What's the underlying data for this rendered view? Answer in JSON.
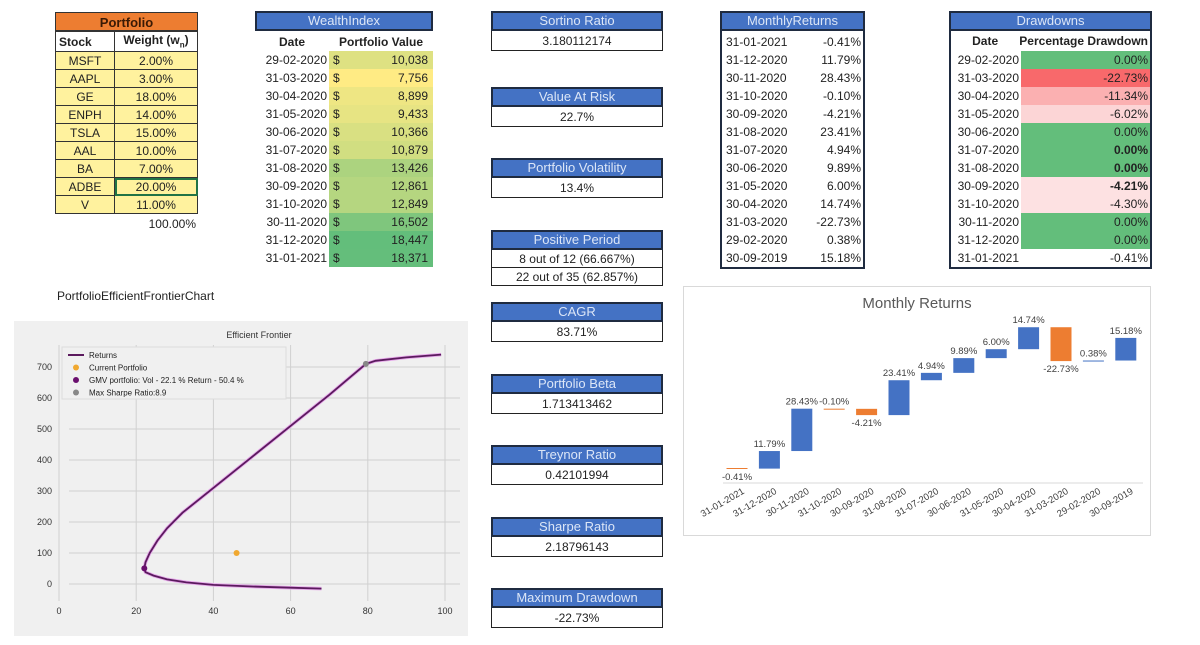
{
  "portfolio": {
    "title": "Portfolio",
    "col_stock": "Stock",
    "col_weight": "Weight (w",
    "col_weight_sub": "n",
    "col_weight_end": ")",
    "rows": [
      [
        "MSFT",
        "2.00%"
      ],
      [
        "AAPL",
        "3.00%"
      ],
      [
        "GE",
        "18.00%"
      ],
      [
        "ENPH",
        "14.00%"
      ],
      [
        "TSLA",
        "15.00%"
      ],
      [
        "AAL",
        "10.00%"
      ],
      [
        "BA",
        "7.00%"
      ],
      [
        "ADBE",
        "20.00%"
      ],
      [
        "V",
        "11.00%"
      ]
    ],
    "total": "100.00%",
    "header_color": "#ED7D31",
    "cell_color": "#FFF29E"
  },
  "wealth": {
    "title": "WealthIndex",
    "col_date": "Date",
    "col_value": "Portfolio Value",
    "currency": "$",
    "rows": [
      [
        "29-02-2020",
        "10,038"
      ],
      [
        "31-03-2020",
        "7,756"
      ],
      [
        "30-04-2020",
        "8,899"
      ],
      [
        "31-05-2020",
        "9,433"
      ],
      [
        "30-06-2020",
        "10,366"
      ],
      [
        "31-07-2020",
        "10,879"
      ],
      [
        "31-08-2020",
        "13,426"
      ],
      [
        "30-09-2020",
        "12,861"
      ],
      [
        "31-10-2020",
        "12,849"
      ],
      [
        "30-11-2020",
        "16,502"
      ],
      [
        "31-12-2020",
        "18,447"
      ],
      [
        "31-01-2021",
        "18,371"
      ]
    ]
  },
  "metrics": [
    {
      "label": "Sortino Ratio",
      "values": [
        "3.180112174"
      ]
    },
    {
      "label": "Value At Risk",
      "values": [
        "22.7%"
      ]
    },
    {
      "label": "Portfolio Volatility",
      "values": [
        "13.4%"
      ]
    },
    {
      "label": "Positive Period",
      "values": [
        "8 out of 12 (66.667%)",
        "22 out of 35 (62.857%)"
      ]
    },
    {
      "label": "CAGR",
      "values": [
        "83.71%"
      ]
    },
    {
      "label": "Portfolio Beta",
      "values": [
        "1.713413462"
      ]
    },
    {
      "label": "Treynor Ratio",
      "values": [
        "0.42101994"
      ]
    },
    {
      "label": "Sharpe Ratio",
      "values": [
        "2.18796143"
      ]
    },
    {
      "label": "Maximum Drawdown",
      "values": [
        "-22.73%"
      ]
    }
  ],
  "monthly": {
    "title": "MonthlyReturns",
    "rows": [
      [
        "31-01-2021",
        "-0.41%"
      ],
      [
        "31-12-2020",
        "11.79%"
      ],
      [
        "30-11-2020",
        "28.43%"
      ],
      [
        "31-10-2020",
        "-0.10%"
      ],
      [
        "30-09-2020",
        "-4.21%"
      ],
      [
        "31-08-2020",
        "23.41%"
      ],
      [
        "31-07-2020",
        "4.94%"
      ],
      [
        "30-06-2020",
        "9.89%"
      ],
      [
        "31-05-2020",
        "6.00%"
      ],
      [
        "30-04-2020",
        "14.74%"
      ],
      [
        "31-03-2020",
        "-22.73%"
      ],
      [
        "29-02-2020",
        "0.38%"
      ],
      [
        "30-09-2019",
        "15.18%"
      ]
    ]
  },
  "drawdowns": {
    "title": "Drawdowns",
    "col_date": "Date",
    "col_pct": "Percentage Drawdown",
    "rows": [
      [
        "29-02-2020",
        "0.00%"
      ],
      [
        "31-03-2020",
        "-22.73%"
      ],
      [
        "30-04-2020",
        "-11.34%"
      ],
      [
        "31-05-2020",
        "-6.02%"
      ],
      [
        "30-06-2020",
        "0.00%"
      ],
      [
        "31-07-2020",
        "0.00%"
      ],
      [
        "31-08-2020",
        "0.00%"
      ],
      [
        "30-09-2020",
        "-4.21%"
      ],
      [
        "31-10-2020",
        "-4.30%"
      ],
      [
        "30-11-2020",
        "0.00%"
      ],
      [
        "31-12-2020",
        "0.00%"
      ],
      [
        "31-01-2021",
        "-0.41%"
      ]
    ]
  },
  "frontier_caption": "PortfolioEfficientFrontierChart",
  "chart_data": [
    {
      "type": "line",
      "title": "Efficient Frontier",
      "xlim": [
        0,
        100
      ],
      "ylim": [
        -50,
        760
      ],
      "xticks": [
        0,
        20,
        40,
        60,
        80,
        100
      ],
      "yticks": [
        0,
        100,
        200,
        300,
        400,
        500,
        600,
        700
      ],
      "grid": true,
      "legend_placement": "top-left",
      "series": [
        {
          "name": "Returns",
          "color": "#5b1a5e",
          "points": [
            [
              68,
              -15
            ],
            [
              60,
              -12
            ],
            [
              50,
              -8
            ],
            [
              40,
              -3
            ],
            [
              33,
              5
            ],
            [
              28,
              15
            ],
            [
              24.5,
              27
            ],
            [
              22.4,
              38
            ],
            [
              22.1,
              50
            ],
            [
              22.4,
              70
            ],
            [
              23.5,
              100
            ],
            [
              25.5,
              140
            ],
            [
              28,
              180
            ],
            [
              32,
              230
            ],
            [
              40,
              310
            ],
            [
              50,
              410
            ],
            [
              60,
              510
            ],
            [
              70,
              610
            ],
            [
              79.5,
              710
            ],
            [
              82,
              720
            ],
            [
              90,
              731
            ],
            [
              99,
              740
            ]
          ]
        },
        {
          "name": "Current Portfolio",
          "color": "#f0a830",
          "points": [
            [
              46,
              100
            ]
          ]
        },
        {
          "name": "GMV portfolio: Vol - 22.1 % Return - 50.4 %",
          "color": "#6a0f6e",
          "points": [
            [
              22.1,
              50.4
            ]
          ]
        },
        {
          "name": "Max Sharpe Ratio:8.9",
          "color": "#888888",
          "points": [
            [
              79.5,
              710
            ]
          ]
        }
      ]
    },
    {
      "type": "bar",
      "subtype": "waterfall",
      "title": "Monthly Returns",
      "categories": [
        "31-01-2021",
        "31-12-2020",
        "30-11-2020",
        "31-10-2020",
        "30-09-2020",
        "31-08-2020",
        "31-07-2020",
        "30-06-2020",
        "31-05-2020",
        "30-04-2020",
        "31-03-2020",
        "29-02-2020",
        "30-09-2019"
      ],
      "values": [
        -0.41,
        11.79,
        28.43,
        -0.1,
        -4.21,
        23.41,
        4.94,
        9.89,
        6.0,
        14.74,
        -22.73,
        0.38,
        15.18
      ],
      "labels": [
        "-0.41%",
        "11.79%",
        "28.43%",
        "-0.10%",
        "-4.21%",
        "23.41%",
        "4.94%",
        "9.89%",
        "6.00%",
        "14.74%",
        "-22.73%",
        "0.38%",
        "15.18%"
      ],
      "increase_color": "#4472C4",
      "decrease_color": "#ED7D31"
    }
  ]
}
